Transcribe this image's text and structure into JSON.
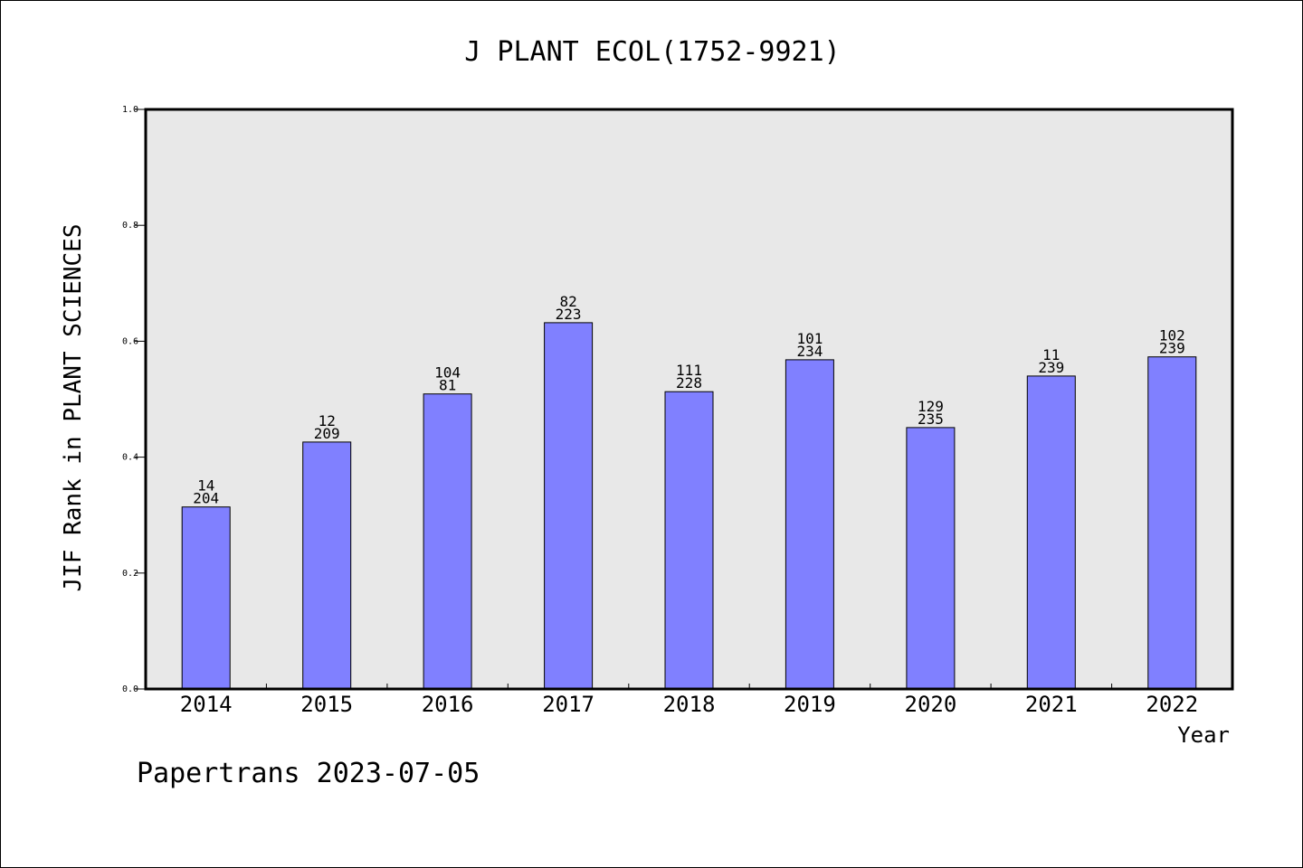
{
  "chart_data": {
    "type": "bar",
    "title": "J PLANT ECOL(1752-9921)",
    "xlabel": "Year",
    "ylabel": "JIF Rank in PLANT SCIENCES",
    "categories": [
      "2014",
      "2015",
      "2016",
      "2017",
      "2018",
      "2019",
      "2020",
      "2021",
      "2022"
    ],
    "values": [
      0.314,
      0.426,
      0.509,
      0.632,
      0.513,
      0.568,
      0.451,
      0.54,
      0.573
    ],
    "labels_top": [
      "14",
      "12",
      "104",
      "82",
      "111",
      "101",
      "129",
      "11",
      "102"
    ],
    "labels_bottom": [
      "204",
      "209",
      "81",
      "223",
      "228",
      "234",
      "235",
      "239",
      "239"
    ],
    "ylim": [
      0,
      1.0
    ],
    "yticks": [
      "0.0",
      "0.2",
      "0.4",
      "0.6",
      "0.8",
      "1.0"
    ],
    "grid": false,
    "bar_color": "#8080ff",
    "plot_background": "#e8e8e8"
  },
  "footer": "Papertrans 2023-07-05"
}
